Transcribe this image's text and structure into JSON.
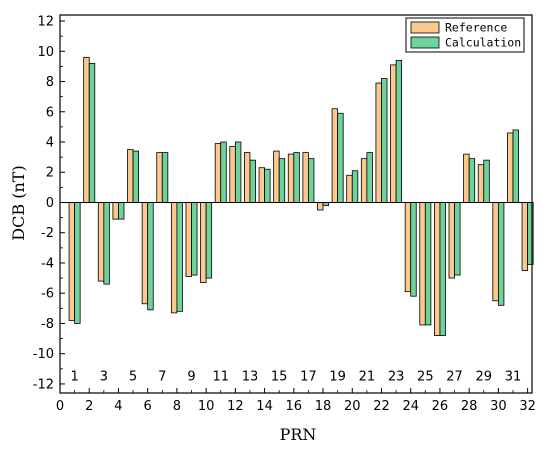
{
  "colors": {
    "reference": "#FBC98E",
    "calculation": "#6FD29A",
    "axis": "#000000",
    "background": "#FFFFFF"
  },
  "chart_data": {
    "type": "bar",
    "title": "",
    "xlabel": "PRN",
    "ylabel": "DCB (nT)",
    "xlim": [
      0,
      32.3
    ],
    "ylim": [
      -12.6,
      12.4
    ],
    "y_ticks": [
      -12,
      -10,
      -8,
      -6,
      -4,
      -2,
      0,
      2,
      4,
      6,
      8,
      10,
      12
    ],
    "x_ticks": [
      0,
      2,
      4,
      6,
      8,
      10,
      12,
      14,
      16,
      18,
      20,
      22,
      24,
      26,
      28,
      30,
      32
    ],
    "zero_axis_labels": [
      "1",
      "3",
      "5",
      "7",
      "9",
      "11",
      "13",
      "15",
      "17",
      "19",
      "21",
      "23",
      "25",
      "27",
      "29",
      "31"
    ],
    "grid": false,
    "legend_position": "top-right",
    "categories": [
      1,
      2,
      3,
      4,
      5,
      6,
      7,
      8,
      9,
      10,
      11,
      12,
      13,
      14,
      15,
      16,
      17,
      18,
      19,
      20,
      21,
      22,
      23,
      24,
      25,
      26,
      27,
      28,
      29,
      30,
      31,
      32
    ],
    "series": [
      {
        "name": "Reference",
        "values": [
          -7.8,
          9.6,
          -5.2,
          -1.1,
          3.5,
          -6.7,
          3.3,
          -7.3,
          -4.9,
          -5.3,
          3.9,
          3.7,
          3.3,
          2.3,
          3.4,
          3.2,
          3.3,
          -0.5,
          6.2,
          1.8,
          2.9,
          7.9,
          9.1,
          -5.9,
          -8.1,
          -8.8,
          -5.0,
          3.2,
          2.5,
          -6.5,
          4.6,
          -4.5
        ]
      },
      {
        "name": "Calculation",
        "values": [
          -8.0,
          9.2,
          -5.4,
          -1.1,
          3.4,
          -7.1,
          3.3,
          -7.2,
          -4.8,
          -5.0,
          4.0,
          4.0,
          2.8,
          2.2,
          2.9,
          3.3,
          2.9,
          -0.2,
          5.9,
          2.1,
          3.3,
          8.2,
          9.4,
          -6.2,
          -8.1,
          -8.8,
          -4.8,
          2.9,
          2.8,
          -6.8,
          4.8,
          -4.1
        ]
      }
    ]
  }
}
